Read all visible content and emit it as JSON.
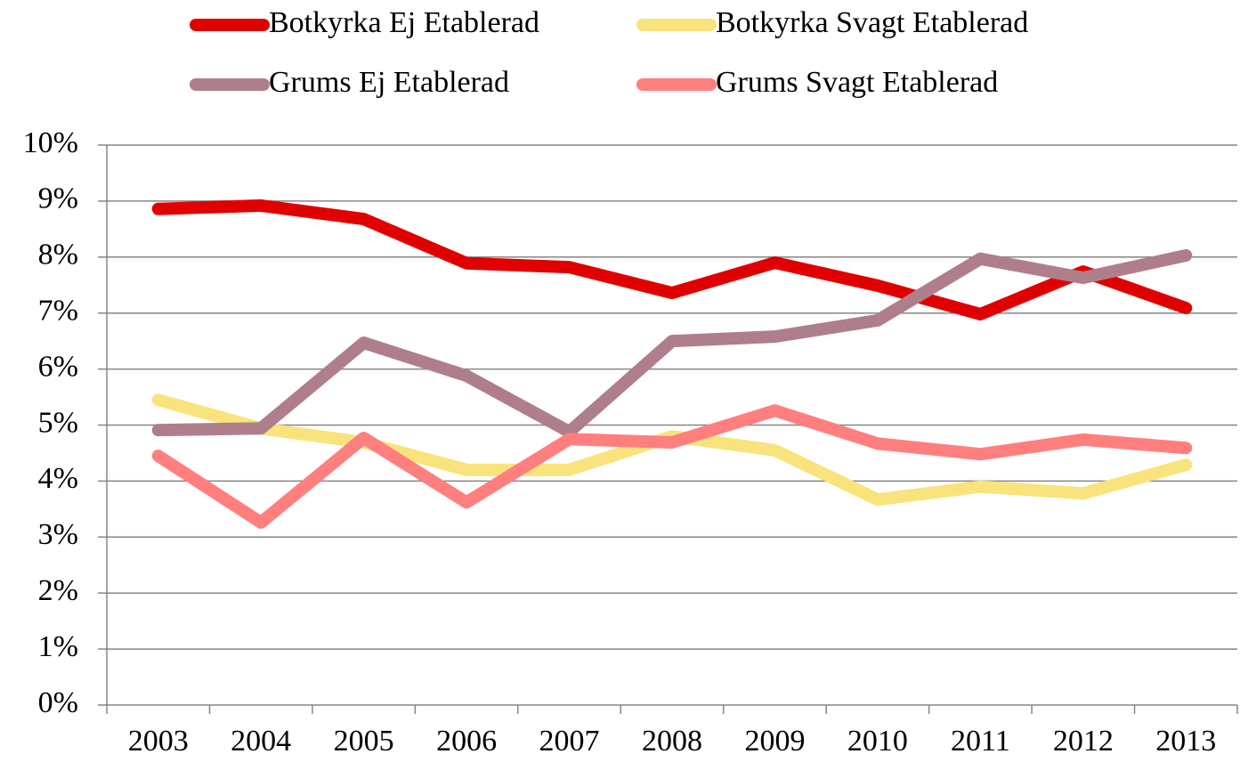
{
  "chart_data": {
    "type": "line",
    "categories": [
      "2003",
      "2004",
      "2005",
      "2006",
      "2007",
      "2008",
      "2009",
      "2010",
      "2011",
      "2012",
      "2013"
    ],
    "series": [
      {
        "name": "Botkyrka Ej Etablerad",
        "color": "#e00000",
        "values": [
          8.86,
          8.92,
          8.68,
          7.89,
          7.82,
          7.36,
          7.9,
          7.49,
          6.98,
          7.74,
          7.09
        ]
      },
      {
        "name": "Botkyrka Svagt Etablerad",
        "color": "#f9e37c",
        "values": [
          5.45,
          4.94,
          4.69,
          4.2,
          4.2,
          4.8,
          4.55,
          3.67,
          3.9,
          3.78,
          4.29
        ]
      },
      {
        "name": "Grums Ej Etablerad",
        "color": "#ae7f8a",
        "values": [
          4.91,
          4.94,
          6.47,
          5.88,
          4.88,
          6.5,
          6.58,
          6.87,
          7.97,
          7.63,
          8.03
        ]
      },
      {
        "name": "Grums Svagt Etablerad",
        "color": "#ff7f7f",
        "values": [
          4.45,
          3.26,
          4.77,
          3.62,
          4.75,
          4.69,
          5.26,
          4.67,
          4.48,
          4.74,
          4.59
        ]
      }
    ],
    "ylim": [
      0,
      10
    ],
    "yticks": [
      {
        "value": 0,
        "label": "0%"
      },
      {
        "value": 1,
        "label": "1%"
      },
      {
        "value": 2,
        "label": "2%"
      },
      {
        "value": 3,
        "label": "3%"
      },
      {
        "value": 4,
        "label": "4%"
      },
      {
        "value": 5,
        "label": "5%"
      },
      {
        "value": 6,
        "label": "6%"
      },
      {
        "value": 7,
        "label": "7%"
      },
      {
        "value": 8,
        "label": "8%"
      },
      {
        "value": 9,
        "label": "9%"
      },
      {
        "value": 10,
        "label": "10%"
      }
    ],
    "grid": true,
    "legend": "top"
  }
}
